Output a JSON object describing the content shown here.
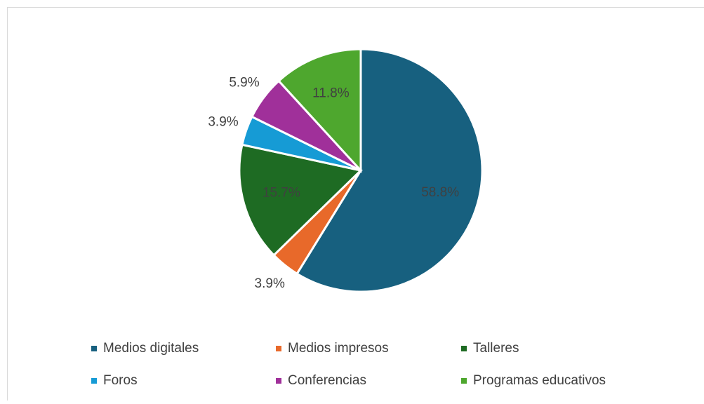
{
  "chart_data": {
    "type": "pie",
    "categories": [
      "Medios digitales",
      "Medios impresos",
      "Talleres",
      "Foros",
      "Conferencias",
      "Programas educativos"
    ],
    "values": [
      58.8,
      3.9,
      15.7,
      3.9,
      5.9,
      11.8
    ],
    "value_labels": [
      "58.8%",
      "3.9%",
      "15.7%",
      "3.9%",
      "5.9%",
      "11.8%"
    ],
    "colors": [
      "#17607f",
      "#e8692a",
      "#1e6b23",
      "#169bd5",
      "#a0309a",
      "#4ea72e"
    ],
    "legend": "bottom"
  }
}
